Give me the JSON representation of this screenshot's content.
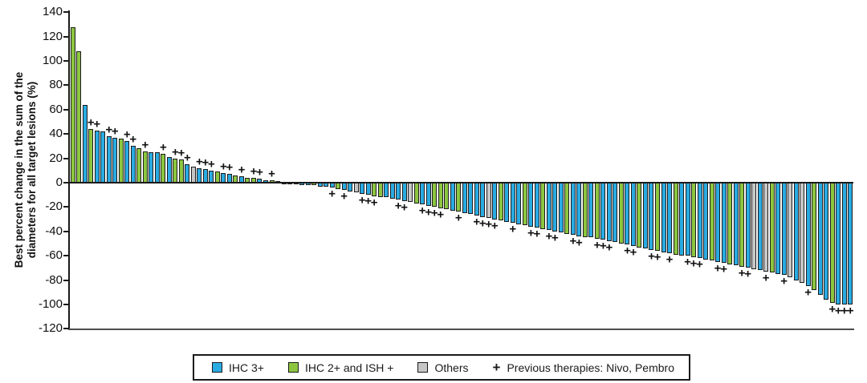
{
  "axis": {
    "ylabel_line1": "Best percent change in the sum of the",
    "ylabel_line2": "diameters for all target lesions (%)",
    "yticks": [
      140,
      120,
      100,
      80,
      60,
      40,
      20,
      0,
      -20,
      -40,
      -60,
      -80,
      -100,
      -120
    ]
  },
  "legend": {
    "items": [
      {
        "key": "B",
        "label": "IHC 3+"
      },
      {
        "key": "G",
        "label": "IHC 2+ and ISH +"
      },
      {
        "key": "O",
        "label": "Others"
      }
    ],
    "marker_item": {
      "symbol": "+",
      "label": "Previous therapies: Nivo, Pembro"
    }
  },
  "colors": {
    "B": "#29abe2",
    "G": "#8cc63f",
    "O": "#c6c6c6",
    "outline": "#1a1a1a"
  },
  "chart_data": {
    "type": "bar",
    "subtype": "waterfall",
    "title": "",
    "xlabel": "",
    "ylabel": "Best percent change in the sum of the diameters for all target lesions (%)",
    "ylim": [
      -120,
      140
    ],
    "ytick_step": 20,
    "grid": false,
    "legend_position": "bottom",
    "color_legend": {
      "B": "IHC 3+",
      "G": "IHC 2+ and ISH +",
      "O": "Others"
    },
    "plus_marker_meaning": "Previous therapies: Nivo, Pembro",
    "series": [
      {
        "name": "patients-best-percent-change",
        "values": [
          128,
          108,
          64,
          44,
          43,
          42,
          38,
          37,
          36,
          34,
          30,
          28,
          26,
          25,
          25,
          24,
          21,
          20,
          19,
          15,
          13,
          12,
          11,
          10,
          9,
          8,
          7,
          6,
          5,
          4,
          4,
          3,
          2,
          2,
          1,
          -1,
          -1,
          -1,
          -2,
          -2,
          -2,
          -3,
          -3,
          -4,
          -5,
          -6,
          -7,
          -8,
          -9,
          -10,
          -11,
          -12,
          -12,
          -13,
          -14,
          -15,
          -16,
          -17,
          -18,
          -19,
          -20,
          -21,
          -22,
          -23,
          -24,
          -25,
          -26,
          -27,
          -28,
          -29,
          -30,
          -31,
          -32,
          -33,
          -34,
          -35,
          -36,
          -37,
          -38,
          -39,
          -40,
          -41,
          -42,
          -43,
          -44,
          -45,
          -45,
          -46,
          -47,
          -48,
          -49,
          -50,
          -51,
          -52,
          -53,
          -54,
          -55,
          -56,
          -57,
          -58,
          -59,
          -60,
          -60,
          -61,
          -62,
          -63,
          -64,
          -65,
          -66,
          -67,
          -68,
          -69,
          -70,
          -71,
          -72,
          -73,
          -74,
          -75,
          -76,
          -78,
          -80,
          -82,
          -85,
          -88,
          -92,
          -96,
          -99,
          -100,
          -100,
          -100
        ],
        "colors": [
          "G",
          "G",
          "B",
          "G",
          "B",
          "B",
          "B",
          "B",
          "G",
          "B",
          "B",
          "G",
          "G",
          "B",
          "B",
          "G",
          "B",
          "G",
          "G",
          "B",
          "O",
          "B",
          "B",
          "B",
          "G",
          "B",
          "B",
          "G",
          "B",
          "G",
          "G",
          "B",
          "B",
          "G",
          "B",
          "B",
          "B",
          "G",
          "B",
          "B",
          "G",
          "B",
          "B",
          "B",
          "G",
          "B",
          "B",
          "O",
          "B",
          "B",
          "G",
          "G",
          "B",
          "B",
          "B",
          "B",
          "O",
          "G",
          "B",
          "B",
          "G",
          "G",
          "G",
          "B",
          "G",
          "B",
          "B",
          "B",
          "B",
          "O",
          "B",
          "G",
          "B",
          "B",
          "B",
          "G",
          "B",
          "B",
          "G",
          "B",
          "B",
          "B",
          "G",
          "B",
          "B",
          "G",
          "B",
          "G",
          "B",
          "B",
          "B",
          "G",
          "B",
          "B",
          "G",
          "B",
          "B",
          "G",
          "B",
          "B",
          "G",
          "B",
          "B",
          "G",
          "B",
          "B",
          "G",
          "B",
          "B",
          "G",
          "B",
          "G",
          "B",
          "O",
          "B",
          "O",
          "G",
          "B",
          "B",
          "O",
          "B",
          "O",
          "B",
          "G",
          "B",
          "B",
          "G",
          "B",
          "B",
          "B"
        ],
        "plus_marker_indices_0based": [
          3,
          4,
          6,
          7,
          9,
          10,
          12,
          15,
          17,
          18,
          19,
          21,
          22,
          23,
          25,
          26,
          28,
          30,
          31,
          33,
          43,
          45,
          48,
          49,
          50,
          54,
          55,
          58,
          59,
          60,
          61,
          64,
          67,
          68,
          69,
          70,
          73,
          76,
          77,
          79,
          80,
          83,
          84,
          87,
          88,
          89,
          92,
          93,
          96,
          97,
          99,
          102,
          103,
          104,
          107,
          108,
          111,
          112,
          115,
          118,
          122,
          126,
          127,
          128,
          129
        ]
      }
    ]
  }
}
